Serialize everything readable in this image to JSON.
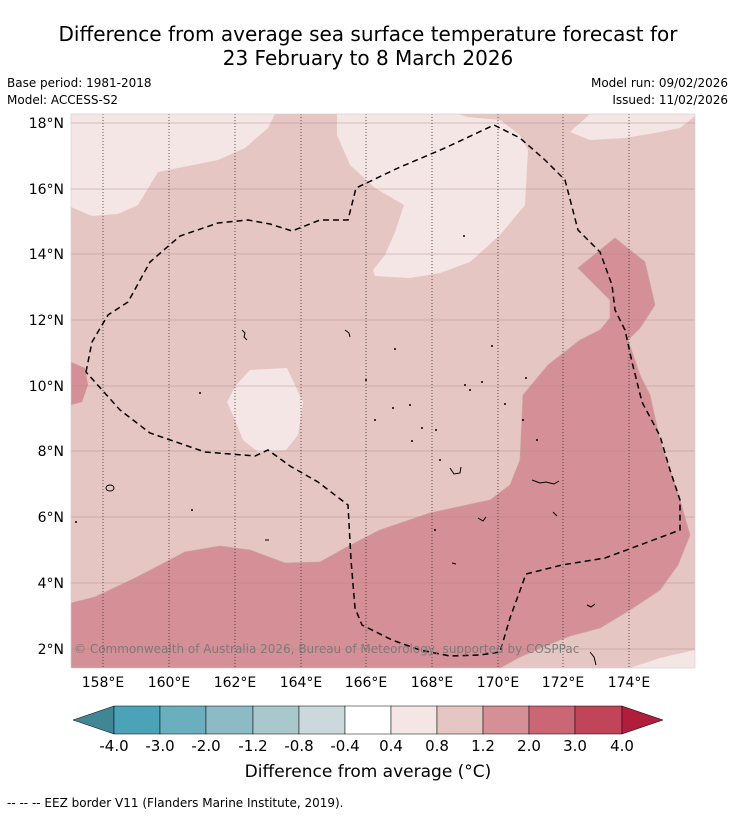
{
  "title_line1": "Difference from average sea surface temperature forecast for",
  "title_line2": "23 February to 8 March 2026",
  "base_period": "Base period: 1981-2018",
  "model": "Model: ACCESS-S2",
  "model_run": "Model run: 09/02/2026",
  "issued": "Issued: 11/02/2026",
  "copyright": "© Commonwealth of Australia 2026, Bureau of Meteorology, supported by COSPPac",
  "lat_labels": [
    "18°N",
    "16°N",
    "14°N",
    "12°N",
    "10°N",
    "8°N",
    "6°N",
    "4°N",
    "2°N"
  ],
  "lon_labels": [
    "158°E",
    "160°E",
    "162°E",
    "164°E",
    "166°E",
    "168°E",
    "170°E",
    "172°E",
    "174°E"
  ],
  "colorbar": {
    "title": "Difference from average (°C)",
    "tick_labels": [
      "-4.0",
      "-3.0",
      "-2.0",
      "-1.2",
      "-0.8",
      "-0.4",
      "0.4",
      "0.8",
      "1.2",
      "2.0",
      "3.0",
      "4.0"
    ],
    "colors": [
      "#3f8794",
      "#4aa3b6",
      "#6aafbe",
      "#8cbac5",
      "#a9c8cc",
      "#cbd9dc",
      "#ffffff",
      "#f4e6e5",
      "#e6c6c2",
      "#d58f96",
      "#cb6674",
      "#c14558",
      "#b01e3c"
    ]
  },
  "field_colors": {
    "light": "#f4e6e5",
    "medium": "#e6c6c2",
    "warm": "#d58f96"
  },
  "footnote": "--  --  -- EEZ border V11 (Flanders Marine Institute, 2019)."
}
